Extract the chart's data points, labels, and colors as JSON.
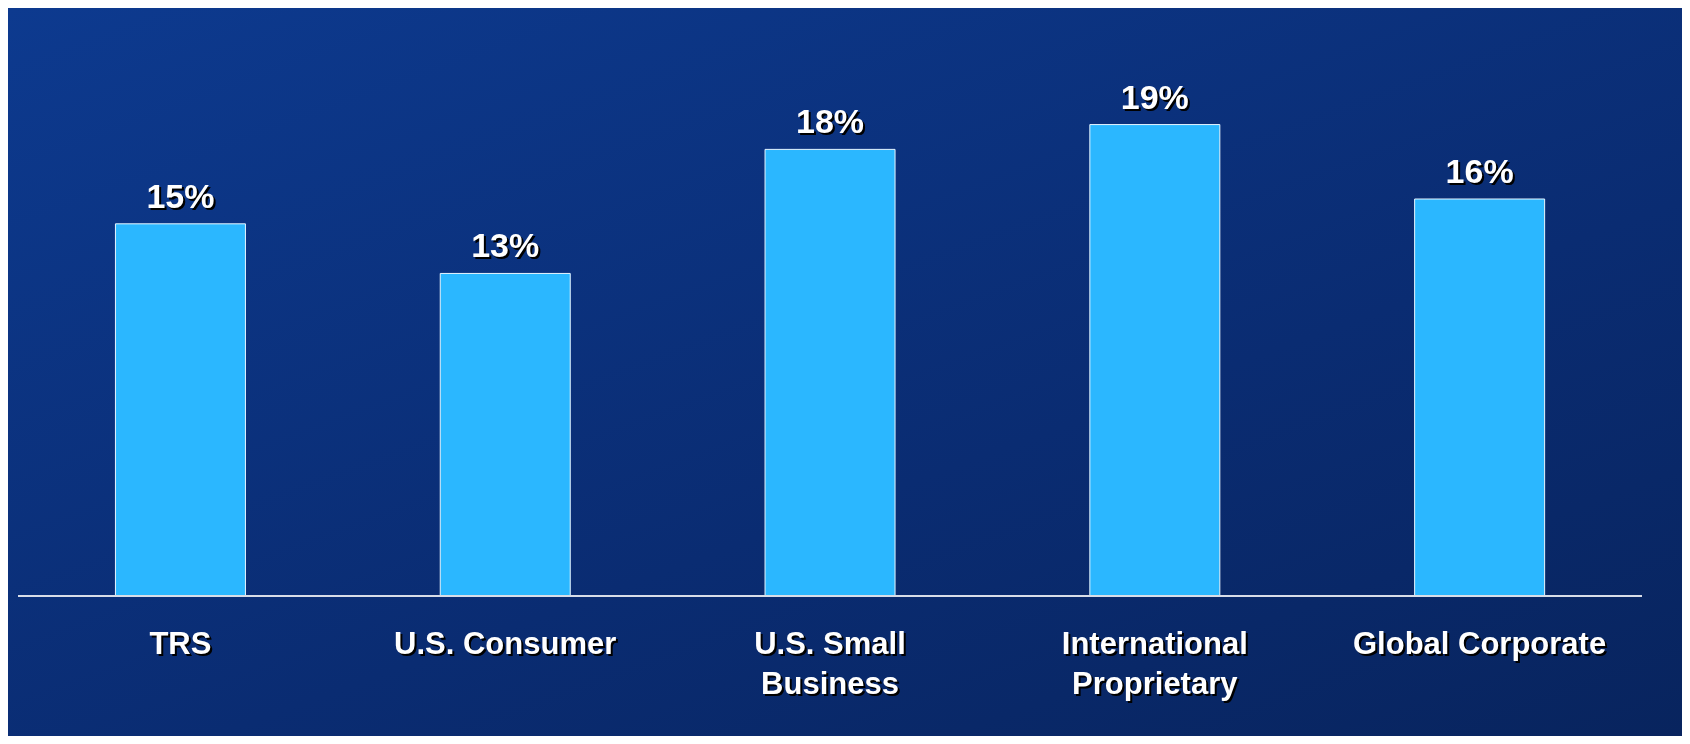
{
  "chart_data": {
    "type": "bar",
    "categories": [
      "TRS",
      "U.S. Consumer",
      "U.S. Small Business",
      "International Proprietary",
      "Global Corporate"
    ],
    "values": [
      15,
      13,
      18,
      19,
      16
    ],
    "value_labels": [
      "15%",
      "13%",
      "18%",
      "19%",
      "16%"
    ],
    "color": "#2bb7ff"
  }
}
